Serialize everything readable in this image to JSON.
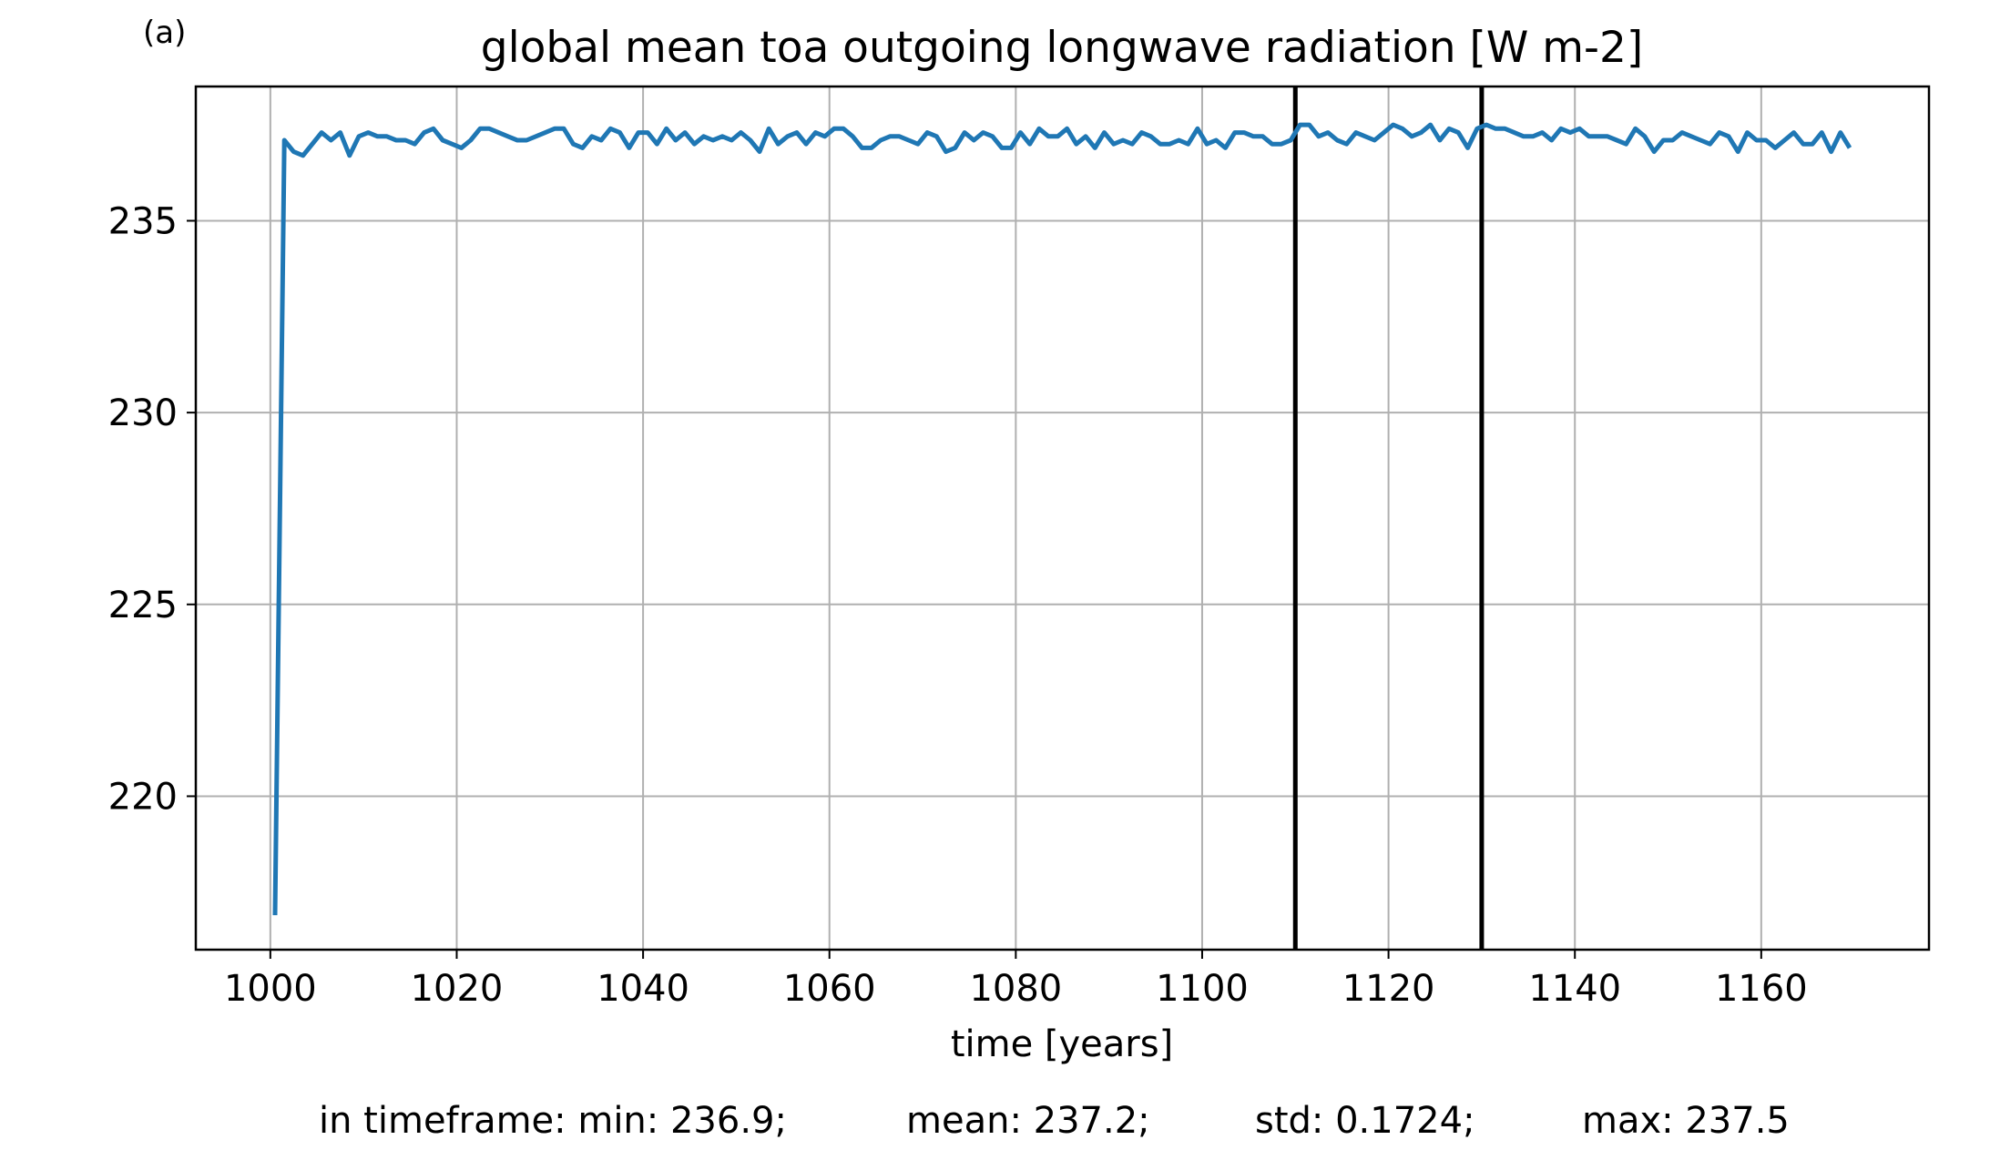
{
  "chart_data": {
    "type": "line",
    "panel_label": "(a)",
    "title": "global mean toa outgoing longwave radiation [W m-2]",
    "xlabel": "time [years]",
    "ylabel": "",
    "xlim": [
      992,
      1178
    ],
    "ylim": [
      216,
      238.5
    ],
    "xticks": [
      "1000",
      "1020",
      "1040",
      "1060",
      "1080",
      "1100",
      "1120",
      "1140",
      "1160"
    ],
    "yticks": [
      "220",
      "225",
      "230",
      "235"
    ],
    "grid": true,
    "line_color": "#1f77b4",
    "vlines": [
      1110,
      1130
    ],
    "vline_color": "#000000",
    "series": [
      {
        "x_start": 1000.5,
        "x_step": 1,
        "values": [
          216.9,
          237.1,
          236.8,
          236.7,
          237.0,
          237.3,
          237.1,
          237.3,
          236.7,
          237.2,
          237.3,
          237.2,
          237.2,
          237.1,
          237.1,
          237.0,
          237.3,
          237.4,
          237.1,
          237.0,
          236.9,
          237.1,
          237.4,
          237.4,
          237.3,
          237.2,
          237.1,
          237.1,
          237.2,
          237.3,
          237.4,
          237.4,
          237.0,
          236.9,
          237.2,
          237.1,
          237.4,
          237.3,
          236.9,
          237.3,
          237.3,
          237.0,
          237.4,
          237.1,
          237.3,
          237.0,
          237.2,
          237.1,
          237.2,
          237.1,
          237.3,
          237.1,
          236.8,
          237.4,
          237.0,
          237.2,
          237.3,
          237.0,
          237.3,
          237.2,
          237.4,
          237.4,
          237.2,
          236.9,
          236.9,
          237.1,
          237.2,
          237.2,
          237.1,
          237.0,
          237.3,
          237.2,
          236.8,
          236.9,
          237.3,
          237.1,
          237.3,
          237.2,
          236.9,
          236.9,
          237.3,
          237.0,
          237.4,
          237.2,
          237.2,
          237.4,
          237.0,
          237.2,
          236.9,
          237.3,
          237.0,
          237.1,
          237.0,
          237.3,
          237.2,
          237.0,
          237.0,
          237.1,
          237.0,
          237.4,
          237.0,
          237.1,
          236.9,
          237.3,
          237.3,
          237.2,
          237.2,
          237.0,
          237.0,
          237.1,
          237.5,
          237.5,
          237.2,
          237.3,
          237.1,
          237.0,
          237.3,
          237.2,
          237.1,
          237.3,
          237.5,
          237.4,
          237.2,
          237.3,
          237.5,
          237.1,
          237.4,
          237.3,
          236.9,
          237.4,
          237.5,
          237.4,
          237.4,
          237.3,
          237.2,
          237.2,
          237.3,
          237.1,
          237.4,
          237.3,
          237.4,
          237.2,
          237.2,
          237.2,
          237.1,
          237.0,
          237.4,
          237.2,
          236.8,
          237.1,
          237.1,
          237.3,
          237.2,
          237.1,
          237.0,
          237.3,
          237.2,
          236.8,
          237.3,
          237.1,
          237.1,
          236.9,
          237.1,
          237.3,
          237.0,
          237.0,
          237.3,
          236.8,
          237.3,
          236.9
        ]
      }
    ]
  },
  "stats": {
    "min": "in timeframe: min: 236.9;",
    "mean": "mean: 237.2;",
    "std": "std: 0.1724;",
    "max": "max: 237.5"
  }
}
